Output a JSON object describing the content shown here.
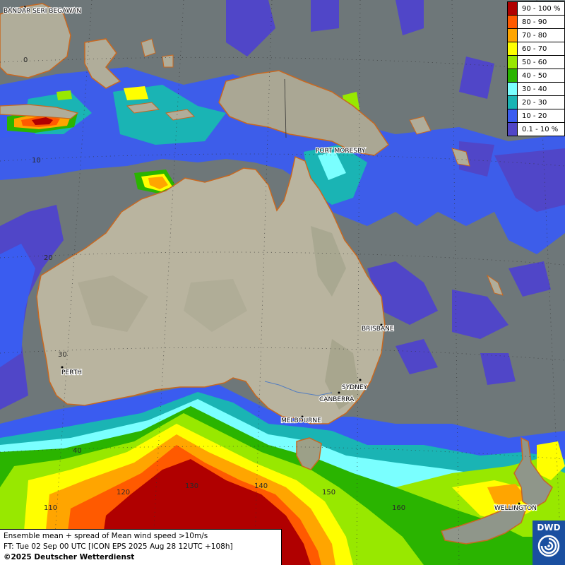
{
  "legend": {
    "items": [
      {
        "label": "90 - 100 %",
        "color": "#b00000"
      },
      {
        "label": "80 - 90",
        "color": "#ff5a00"
      },
      {
        "label": "70 - 80",
        "color": "#ffa500"
      },
      {
        "label": "60 - 70",
        "color": "#ffff00"
      },
      {
        "label": "50 - 60",
        "color": "#98e800"
      },
      {
        "label": "40 - 50",
        "color": "#2ab400"
      },
      {
        "label": "30 - 40",
        "color": "#7affff"
      },
      {
        "label": "20 - 30",
        "color": "#1ab4b4"
      },
      {
        "label": "10 - 20",
        "color": "#3a5cf0"
      },
      {
        "label": "0.1 - 10 %",
        "color": "#5046c8"
      }
    ]
  },
  "cities": {
    "bandar": "BANDAR SERI BEGAWAN",
    "port_moresby": "PORT MORESBY",
    "brisbane": "BRISBANE",
    "perth": "PERTH",
    "sydney": "SYDNEY",
    "canberra": "CANBERRA",
    "melbourne": "MELBOURNE",
    "wellington": "WELLINGTON"
  },
  "grid_labels": {
    "lat_0": "0",
    "lat_10": "10",
    "lat_20": "20",
    "lat_30": "30",
    "lat_40": "40",
    "lon_110": "110",
    "lon_120": "120",
    "lon_130": "130",
    "lon_140": "140",
    "lon_150": "150",
    "lon_160": "160"
  },
  "info": {
    "line1": "Ensemble mean + spread of Mean wind speed >10m/s",
    "line2": "FT: Tue 02 Sep 00 UTC [ICON EPS 2025 Aug 28 12UTC +108h]",
    "line3": "©2025 Deutscher Wetterdienst"
  },
  "logo": {
    "text": "DWD"
  }
}
